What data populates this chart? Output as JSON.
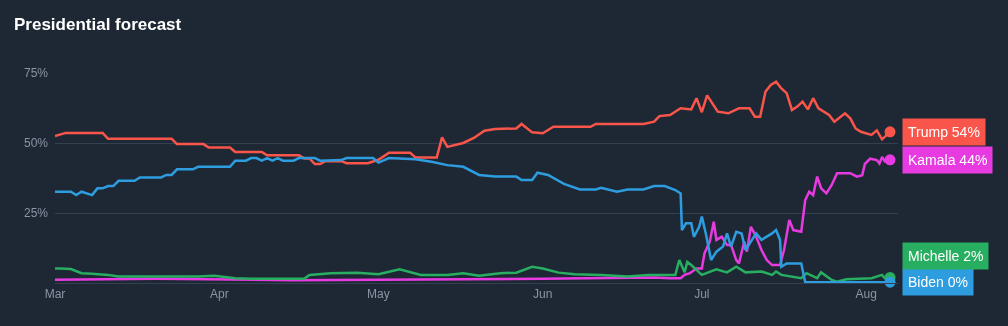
{
  "chart_data": {
    "type": "line",
    "title": "Presidential forecast",
    "xlim": [
      "--03-01",
      "--08-07"
    ],
    "xticks": [
      {
        "value": "--03-01",
        "label": "Mar"
      },
      {
        "value": "--04-01",
        "label": "Apr"
      },
      {
        "value": "--05-01",
        "label": "May"
      },
      {
        "value": "--06-01",
        "label": "Jun"
      },
      {
        "value": "--07-01",
        "label": "Jul"
      },
      {
        "value": "--08-01",
        "label": "Aug"
      }
    ],
    "ylim": [
      0,
      75
    ],
    "yticks": [
      {
        "value": 25,
        "label": "25%"
      },
      {
        "value": 50,
        "label": "50%"
      },
      {
        "value": 75,
        "label": "75%"
      }
    ],
    "grid": "y",
    "legend": false,
    "marker": "none",
    "line_style": "solid",
    "series": [
      {
        "name": "Trump",
        "color": "#f9554a",
        "x": [
          "--03-01",
          "--03-03",
          "--03-10",
          "--03-11",
          "--03-23",
          "--03-24",
          "--03-29",
          "--03-30",
          "--04-03",
          "--04-04",
          "--04-09",
          "--04-10",
          "--04-16",
          "--04-17",
          "--04-18",
          "--04-19",
          "--04-20",
          "--04-21",
          "--04-24",
          "--04-25",
          "--04-29",
          "--05-01",
          "--05-03",
          "--05-07",
          "--05-08",
          "--05-12",
          "--05-13",
          "--05-14",
          "--05-17",
          "--05-19",
          "--05-21",
          "--05-23",
          "--05-27",
          "--05-28",
          "--05-30",
          "--06-01",
          "--06-03",
          "--06-10",
          "--06-11",
          "--06-20",
          "--06-22",
          "--06-23",
          "--06-25",
          "--06-27",
          "--06-29",
          "--06-30",
          "--07-01",
          "--07-02",
          "--07-04",
          "--07-06",
          "--07-08",
          "--07-10",
          "--07-11",
          "--07-12",
          "--07-13",
          "--07-14",
          "--07-15",
          "--07-16",
          "--07-17",
          "--07-18",
          "--07-19",
          "--07-20",
          "--07-21",
          "--07-22",
          "--07-23",
          "--07-25",
          "--07-26",
          "--07-28",
          "--07-29",
          "--07-30",
          "--07-31",
          "--08-02",
          "--08-03",
          "--08-04",
          "--08-05T12:00"
        ],
        "values": [
          52.5,
          53.6,
          53.6,
          51.5,
          51.5,
          49.6,
          49.6,
          48.4,
          48.4,
          46.8,
          46.8,
          45.6,
          45.6,
          44.5,
          44.5,
          42.5,
          42.5,
          43.5,
          43.5,
          42.8,
          42.8,
          44,
          46.5,
          46.5,
          44.8,
          44.8,
          52,
          48.6,
          50,
          51.8,
          54.4,
          55,
          55.2,
          56.8,
          53.8,
          53.5,
          55.8,
          55.8,
          56.8,
          56.8,
          57.6,
          59.6,
          60,
          62.4,
          62,
          66,
          61,
          67,
          61.2,
          60.6,
          62.4,
          62.4,
          59.4,
          59.4,
          68.3,
          70.7,
          71.9,
          69.5,
          67.8,
          61.8,
          63,
          64.8,
          62,
          66,
          62.4,
          60,
          57.6,
          60.6,
          58.8,
          55.2,
          54,
          52.9,
          54.5,
          51.3,
          54
        ],
        "value_labels": [
          null,
          null,
          null,
          null,
          null,
          null,
          null,
          null,
          null,
          null,
          null,
          null,
          null,
          null,
          null,
          null,
          null,
          null,
          null,
          null,
          null,
          null,
          null,
          null,
          null,
          null,
          null,
          null,
          null,
          null,
          null,
          null,
          null,
          null,
          null,
          null,
          null,
          null,
          null,
          null,
          null,
          null,
          null,
          null,
          null,
          null,
          null,
          null,
          null,
          null,
          null,
          null,
          null,
          null,
          null,
          null,
          null,
          null,
          null,
          null,
          null,
          null,
          null,
          null,
          null,
          null,
          null,
          null,
          null,
          null,
          null,
          null,
          null,
          null,
          "54%"
        ]
      },
      {
        "name": "Kamala",
        "color": "#e73ae0",
        "x": [
          "--03-01",
          "--03-20",
          "--04-15",
          "--05-01",
          "--06-01",
          "--06-22",
          "--06-25",
          "--06-27T00:00",
          "--06-27T18:00",
          "--06-28T18:00",
          "--06-30T00:00",
          "--07-01T00:00",
          "--07-01T12:00",
          "--07-02T12:00",
          "--07-03T06:00",
          "--07-03T18:00",
          "--07-04T18:00",
          "--07-05T18:00",
          "--07-06T12:00",
          "--07-07T12:00",
          "--07-08T00:00",
          "--07-09T00:00",
          "--07-09T12:00",
          "--07-10T06:00",
          "--07-11T06:00",
          "--07-12T06:00",
          "--07-13T06:00",
          "--07-14T06:00",
          "--07-15T18:00",
          "--07-16T12:00",
          "--07-17T12:00",
          "--07-18T06:00",
          "--07-19T18:00",
          "--07-20T12:00",
          "--07-21T06:00",
          "--07-22T00:00",
          "--07-22T18:00",
          "--07-23T12:00",
          "--07-24T12:00",
          "--07-25T12:00",
          "--07-26T12:00",
          "--07-27T12:00",
          "--07-29T00:00",
          "--07-30T06:00",
          "--07-31T06:00",
          "--07-31T18:00",
          "--08-01T18:00",
          "--08-03T00:00",
          "--08-03T12:00",
          "--08-04T00:00",
          "--08-04T12:00",
          "--08-05T12:00"
        ],
        "values": [
          1.2,
          1.5,
          1.0,
          1.2,
          1.5,
          2.0,
          1.7,
          1.7,
          2.9,
          3.5,
          5.2,
          5.2,
          10.6,
          14.8,
          21.9,
          15.4,
          16.5,
          13.6,
          13.6,
          8.2,
          7,
          14.8,
          11.2,
          20.1,
          16.5,
          11.8,
          8.2,
          6.4,
          6.4,
          11.8,
          22.5,
          18.9,
          18.3,
          29.6,
          32.6,
          31.4,
          38,
          33.8,
          32,
          35,
          39.2,
          39.2,
          39.2,
          38,
          38.5,
          42.5,
          44.4,
          43.9,
          42.7,
          45,
          43.5,
          44
        ],
        "value_labels": [
          null,
          null,
          null,
          null,
          null,
          null,
          null,
          null,
          null,
          null,
          null,
          null,
          null,
          null,
          null,
          null,
          null,
          null,
          null,
          null,
          null,
          null,
          null,
          null,
          null,
          null,
          null,
          null,
          null,
          null,
          null,
          null,
          null,
          null,
          null,
          null,
          null,
          null,
          null,
          null,
          null,
          null,
          null,
          null,
          null,
          null,
          null,
          null,
          null,
          null,
          null,
          "44%"
        ]
      },
      {
        "name": "Michelle",
        "color": "#27ae60",
        "x": [
          "--03-01",
          "--03-02",
          "--03-04",
          "--03-06",
          "--03-08",
          "--03-11",
          "--03-13",
          "--03-28",
          "--03-31",
          "--04-04",
          "--04-07",
          "--04-17",
          "--04-18",
          "--04-22",
          "--04-27",
          "--05-01",
          "--05-05",
          "--05-09",
          "--05-14",
          "--05-17",
          "--05-20",
          "--05-24",
          "--05-27",
          "--05-30",
          "--06-01",
          "--06-04",
          "--06-07",
          "--06-12",
          "--06-17",
          "--06-21",
          "--06-26T00:00",
          "--06-26T18:00",
          "--06-27T18:00",
          "--06-28T06:00",
          "--06-29T00:00",
          "--07-01T00:00",
          "--07-03T18:00",
          "--07-05T18:00",
          "--07-07T12:00",
          "--07-09T06:00",
          "--07-12T06:00",
          "--07-14T06:00",
          "--07-15T00:00",
          "--07-16T00:00",
          "--07-19T18:00",
          "--07-20T18:00",
          "--07-22T18:00",
          "--07-23T12:00",
          "--07-25T12:00",
          "--07-26T12:00",
          "--07-28T06:00",
          "--08-02T00:00",
          "--08-04T00:00",
          "--08-04T12:00",
          "--08-05T12:00"
        ],
        "values": [
          5.2,
          5.2,
          5,
          3.5,
          3.3,
          2.9,
          2.3,
          2.3,
          2.6,
          1.7,
          1.5,
          1.5,
          2.9,
          3.5,
          3.7,
          3.1,
          4.9,
          2.9,
          2.9,
          3.5,
          2.6,
          3.5,
          3.7,
          5.8,
          5.2,
          3.7,
          3.1,
          2.9,
          2.3,
          2.9,
          2.9,
          8.2,
          3.8,
          7.5,
          6.4,
          2.9,
          4.9,
          3.8,
          5.8,
          3.8,
          4.1,
          2.9,
          4.1,
          2.9,
          1.7,
          3.5,
          1.7,
          3.8,
          1.1,
          0.5,
          1.3,
          1.7,
          2.9,
          1.7,
          2
        ],
        "value_labels": [
          null,
          null,
          null,
          null,
          null,
          null,
          null,
          null,
          null,
          null,
          null,
          null,
          null,
          null,
          null,
          null,
          null,
          null,
          null,
          null,
          null,
          null,
          null,
          null,
          null,
          null,
          null,
          null,
          null,
          null,
          null,
          null,
          null,
          null,
          null,
          null,
          null,
          null,
          null,
          null,
          null,
          null,
          null,
          null,
          null,
          null,
          null,
          null,
          null,
          null,
          null,
          null,
          null,
          null,
          "2%"
        ]
      },
      {
        "name": "Biden",
        "color": "#2e9de0",
        "x": [
          "--03-01",
          "--03-04",
          "--03-05",
          "--03-06",
          "--03-08",
          "--03-09",
          "--03-10",
          "--03-11",
          "--03-12",
          "--03-13",
          "--03-16",
          "--03-17",
          "--03-21",
          "--03-22",
          "--03-23",
          "--03-24",
          "--03-27",
          "--03-28",
          "--04-03",
          "--04-04",
          "--04-06",
          "--04-07",
          "--04-08",
          "--04-09",
          "--04-10",
          "--04-11",
          "--04-12",
          "--04-13",
          "--04-15",
          "--04-16",
          "--04-19",
          "--04-20",
          "--04-24",
          "--04-25",
          "--04-30",
          "--05-01",
          "--05-03",
          "--05-08",
          "--05-11",
          "--05-14",
          "--05-17",
          "--05-20",
          "--05-23",
          "--05-27",
          "--05-28",
          "--05-30",
          "--05-31",
          "--06-02",
          "--06-05",
          "--06-08",
          "--06-11",
          "--06-12",
          "--06-15",
          "--06-17",
          "--06-20",
          "--06-22",
          "--06-24",
          "--06-26T00:00",
          "--06-27T00:00",
          "--06-27T06:00",
          "--06-28T00:00",
          "--06-29T00:00",
          "--06-29T12:00",
          "--06-30T12:00",
          "--07-01T00:00",
          "--07-01T18:00",
          "--07-02T18:00",
          "--07-03T18:00",
          "--07-05T00:00",
          "--07-05T18:00",
          "--07-06T12:00",
          "--07-07T12:00",
          "--07-08T12:00",
          "--07-09T06:00",
          "--07-10T06:00",
          "--07-11T06:00",
          "--07-12T06:00",
          "--07-14T06:00",
          "--07-15T00:00",
          "--07-15T18:00",
          "--07-16T00:00",
          "--07-17T00:00",
          "--07-19T18:00",
          "--07-20T12:00",
          "--08-05T12:00"
        ],
        "values": [
          32.6,
          32.6,
          31.4,
          32.6,
          31.4,
          33.8,
          33.8,
          34.6,
          34.6,
          36.5,
          36.5,
          37.7,
          37.7,
          38.6,
          38.6,
          40.6,
          40.6,
          41.5,
          41.5,
          43.7,
          43.7,
          44.6,
          44.6,
          43.7,
          44.6,
          43.7,
          44.6,
          43.7,
          43.7,
          44.6,
          44.6,
          43.7,
          43.9,
          44.6,
          44.6,
          43,
          44.6,
          44.2,
          43.3,
          42.1,
          41.5,
          38.6,
          38,
          38,
          36.8,
          36.8,
          39.4,
          38.6,
          35.4,
          33.4,
          33.4,
          34,
          32.6,
          33.4,
          33.4,
          34.6,
          34.6,
          33.2,
          32,
          18.9,
          21.3,
          21.3,
          16.5,
          20.1,
          23.7,
          17.7,
          8.2,
          11.2,
          13,
          17.7,
          13,
          18.3,
          17.7,
          11.8,
          14.8,
          17.7,
          15.4,
          17.7,
          18.9,
          15.4,
          5.8,
          7,
          7,
          0.3,
          0.3
        ],
        "value_labels": [
          null,
          null,
          null,
          null,
          null,
          null,
          null,
          null,
          null,
          null,
          null,
          null,
          null,
          null,
          null,
          null,
          null,
          null,
          null,
          null,
          null,
          null,
          null,
          null,
          null,
          null,
          null,
          null,
          null,
          null,
          null,
          null,
          null,
          null,
          null,
          null,
          null,
          null,
          null,
          null,
          null,
          null,
          null,
          null,
          null,
          null,
          null,
          null,
          null,
          null,
          null,
          null,
          null,
          null,
          null,
          null,
          null,
          null,
          null,
          null,
          null,
          null,
          null,
          null,
          null,
          null,
          null,
          null,
          null,
          null,
          null,
          null,
          null,
          null,
          null,
          null,
          null,
          null,
          null,
          null,
          null,
          null,
          null,
          null,
          "0%"
        ]
      }
    ]
  }
}
